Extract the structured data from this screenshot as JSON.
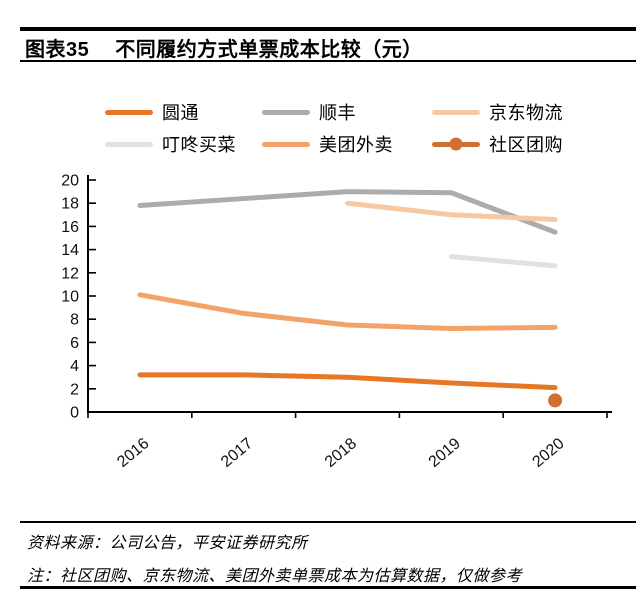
{
  "header": {
    "figure_label": "图表35",
    "title": "不同履约方式单票成本比较（元）"
  },
  "chart_data": {
    "type": "line",
    "title": "不同履约方式单票成本比较（元）",
    "xlabel": "",
    "ylabel": "",
    "categories": [
      "2016",
      "2017",
      "2018",
      "2019",
      "2020"
    ],
    "series": [
      {
        "name": "圆通",
        "color": "#E87725",
        "values": [
          3.2,
          3.2,
          3.0,
          2.5,
          2.1
        ]
      },
      {
        "name": "顺丰",
        "color": "#ACACAC",
        "values": [
          17.8,
          18.4,
          19.0,
          18.9,
          15.5
        ]
      },
      {
        "name": "京东物流",
        "color": "#F7C9A3",
        "values": [
          null,
          null,
          18.0,
          17.0,
          16.6
        ]
      },
      {
        "name": "叮咚买菜",
        "color": "#E1E1E1",
        "values": [
          null,
          null,
          null,
          13.4,
          12.6
        ]
      },
      {
        "name": "美团外卖",
        "color": "#F2A369",
        "values": [
          10.1,
          8.5,
          7.5,
          7.2,
          7.3
        ]
      },
      {
        "name": "社区团购",
        "color": "#D07030",
        "values": [
          null,
          null,
          null,
          null,
          1.0
        ],
        "marker": "dot"
      }
    ],
    "ylim": [
      0,
      20
    ],
    "y_tick_step": 2,
    "grid": false,
    "legend_position": "top",
    "x_label_rotation_deg": -40
  },
  "footer": {
    "source": "资料来源：公司公告，平安证券研究所",
    "note": "注：社区团购、京东物流、美团外卖单票成本为估算数据，仅做参考"
  }
}
